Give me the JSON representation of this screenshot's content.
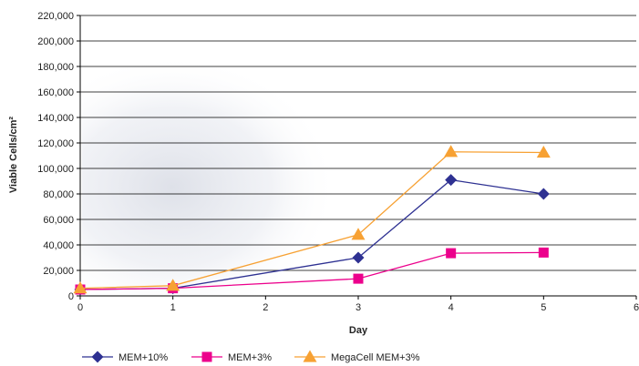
{
  "chart_data": {
    "type": "line",
    "title": "",
    "xlabel": "Day",
    "ylabel": "Viable Cells/cm²",
    "x": [
      0,
      1,
      3,
      4,
      5
    ],
    "xlim": [
      0,
      6
    ],
    "xticks": [
      "0",
      "1",
      "2",
      "3",
      "4",
      "5",
      "6"
    ],
    "ylim": [
      0,
      220000
    ],
    "yticks": [
      "0",
      "20,000",
      "40,000",
      "60,000",
      "80,000",
      "100,000",
      "120,000",
      "140,000",
      "160,000",
      "180,000",
      "200,000",
      "220,000"
    ],
    "grid": "horizontal",
    "legend_position": "bottom",
    "series": [
      {
        "name": "MEM+10%",
        "color": "#2E3192",
        "marker": "diamond",
        "values": [
          5000,
          6000,
          30000,
          91000,
          80000
        ]
      },
      {
        "name": "MEM+3%",
        "color": "#EC008C",
        "marker": "square",
        "values": [
          5000,
          6000,
          13500,
          33500,
          34000
        ]
      },
      {
        "name": "MegaCell MEM+3%",
        "color": "#F7A133",
        "marker": "triangle",
        "values": [
          6000,
          8000,
          48000,
          113000,
          112500
        ]
      }
    ]
  }
}
